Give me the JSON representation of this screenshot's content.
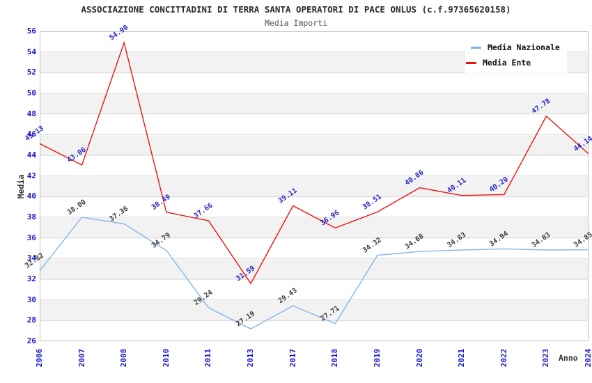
{
  "header": {
    "title": "ASSOCIAZIONE CONCITTADINI DI TERRA SANTA OPERATORI DI PACE ONLUS (c.f.97365620158)",
    "subtitle": "Media Importi"
  },
  "chart_data": {
    "type": "line",
    "title": "ASSOCIAZIONE CONCITTADINI DI TERRA SANTA OPERATORI DI PACE ONLUS (c.f.97365620158)",
    "subtitle": "Media Importi",
    "xlabel": "Anno",
    "ylabel": "Media",
    "ylim": [
      26,
      56
    ],
    "y_ticks": [
      26,
      28,
      30,
      32,
      34,
      36,
      38,
      40,
      42,
      44,
      46,
      48,
      50,
      52,
      54,
      56
    ],
    "grid": "horizontal gridlines with alternating white/grey bands every 2 units",
    "legend_position": "top-right",
    "categories": [
      "2006",
      "2007",
      "2008",
      "2010",
      "2011",
      "2013",
      "2017",
      "2018",
      "2019",
      "2020",
      "2021",
      "2022",
      "2023",
      "2024"
    ],
    "series": [
      {
        "name": "Media Nazionale",
        "color": "#85b5e7",
        "label_color": "#3c3c3c",
        "values": [
          32.82,
          38.0,
          37.36,
          34.79,
          29.24,
          27.19,
          29.43,
          27.71,
          34.32,
          34.68,
          34.83,
          34.94,
          34.83,
          34.85
        ]
      },
      {
        "name": "Media Ente",
        "color": "#ee1111",
        "label_color": "#2626c4",
        "values": [
          45.13,
          43.06,
          54.9,
          38.49,
          37.66,
          31.59,
          39.11,
          36.96,
          38.51,
          40.86,
          40.11,
          40.2,
          47.78,
          44.14
        ]
      }
    ],
    "axis_tick_color": "#1515cc",
    "gridline_color": "#d9d9d9"
  }
}
